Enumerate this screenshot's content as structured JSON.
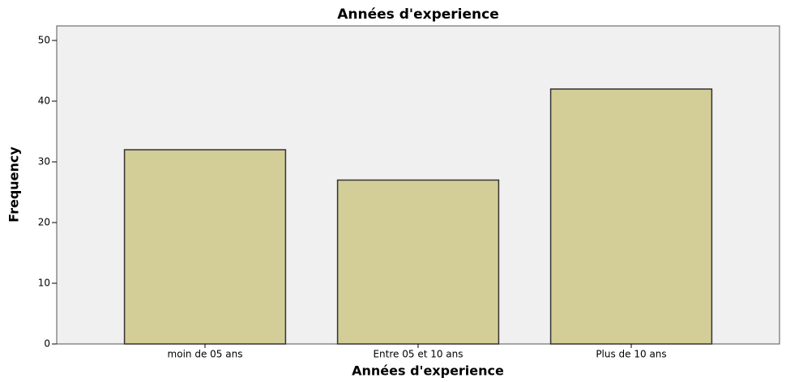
{
  "chart_data": {
    "type": "bar",
    "title": "Années d'experience",
    "x_label": "Années d'experience",
    "y_label": "Frequency",
    "categories": [
      "moin de 05 ans",
      "Entre 05 et 10 ans",
      "Plus de 10 ans"
    ],
    "values": [
      32,
      27,
      42
    ],
    "color": "#d3cd97",
    "ylim": [
      0,
      52.4
    ],
    "yticks": [
      0,
      10,
      20,
      30,
      40,
      50
    ],
    "grid": false
  }
}
